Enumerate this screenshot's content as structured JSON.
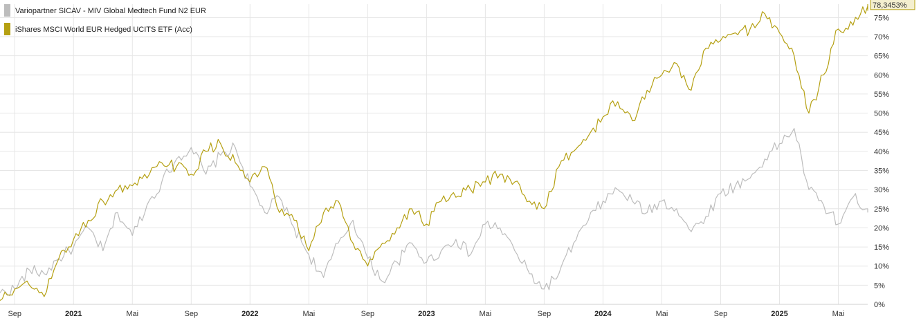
{
  "chart_data": {
    "type": "line",
    "title": "",
    "xlabel": "",
    "ylabel": "",
    "ylim": [
      0,
      78.5
    ],
    "y_ticks": [
      "0%",
      "5%",
      "10%",
      "15%",
      "20%",
      "25%",
      "30%",
      "35%",
      "40%",
      "45%",
      "50%",
      "55%",
      "60%",
      "65%",
      "70%",
      "75%"
    ],
    "x_ticks": [
      {
        "label": "Sep",
        "year": false
      },
      {
        "label": "2021",
        "year": true
      },
      {
        "label": "Mai",
        "year": false
      },
      {
        "label": "Sep",
        "year": false
      },
      {
        "label": "2022",
        "year": true
      },
      {
        "label": "Mai",
        "year": false
      },
      {
        "label": "Sep",
        "year": false
      },
      {
        "label": "2023",
        "year": true
      },
      {
        "label": "Mai",
        "year": false
      },
      {
        "label": "Sep",
        "year": false
      },
      {
        "label": "2024",
        "year": true
      },
      {
        "label": "Mai",
        "year": false
      },
      {
        "label": "Sep",
        "year": false
      },
      {
        "label": "2025",
        "year": true
      },
      {
        "label": "Mai",
        "year": false
      }
    ],
    "x_range": [
      "2020-08",
      "2025-07"
    ],
    "grid": true,
    "legend_position": "top-left",
    "last_value_label": "78,3453%",
    "series": [
      {
        "name": "Variopartner SICAV - MIV Global Medtech Fund N2 EUR",
        "color": "#bdbdbd",
        "x": [
          "2020-08",
          "2020-09",
          "2020-10",
          "2020-11",
          "2020-12",
          "2021-01",
          "2021-02",
          "2021-03",
          "2021-04",
          "2021-05",
          "2021-06",
          "2021-07",
          "2021-08",
          "2021-09",
          "2021-10",
          "2021-11",
          "2021-12",
          "2022-01",
          "2022-02",
          "2022-03",
          "2022-04",
          "2022-05",
          "2022-06",
          "2022-07",
          "2022-08",
          "2022-09",
          "2022-10",
          "2022-11",
          "2022-12",
          "2023-01",
          "2023-02",
          "2023-03",
          "2023-04",
          "2023-05",
          "2023-06",
          "2023-07",
          "2023-08",
          "2023-09",
          "2023-10",
          "2023-11",
          "2023-12",
          "2024-01",
          "2024-02",
          "2024-03",
          "2024-04",
          "2024-05",
          "2024-06",
          "2024-07",
          "2024-08",
          "2024-09",
          "2024-10",
          "2024-11",
          "2024-12",
          "2025-01",
          "2025-02",
          "2025-03",
          "2025-04",
          "2025-05",
          "2025-06",
          "2025-07"
        ],
        "values": [
          3,
          4,
          9,
          8,
          12,
          15,
          20,
          14,
          24,
          18,
          26,
          32,
          38,
          41,
          34,
          39,
          41,
          31,
          24,
          28,
          20,
          13,
          7,
          16,
          22,
          12,
          6,
          11,
          16,
          11,
          14,
          17,
          13,
          21,
          20,
          14,
          8,
          4,
          8,
          16,
          22,
          27,
          30,
          27,
          24,
          27,
          25,
          19,
          23,
          29,
          31,
          33,
          38,
          42,
          46,
          30,
          26,
          21,
          28,
          25
        ],
        "final": 24.9
      },
      {
        "name": "iShares MSCI World EUR Hedged UCITS ETF (Acc)",
        "color": "#b5a012",
        "x": [
          "2020-08",
          "2020-09",
          "2020-10",
          "2020-11",
          "2020-12",
          "2021-01",
          "2021-02",
          "2021-03",
          "2021-04",
          "2021-05",
          "2021-06",
          "2021-07",
          "2021-08",
          "2021-09",
          "2021-10",
          "2021-11",
          "2021-12",
          "2022-01",
          "2022-02",
          "2022-03",
          "2022-04",
          "2022-05",
          "2022-06",
          "2022-07",
          "2022-08",
          "2022-09",
          "2022-10",
          "2022-11",
          "2022-12",
          "2023-01",
          "2023-02",
          "2023-03",
          "2023-04",
          "2023-05",
          "2023-06",
          "2023-07",
          "2023-08",
          "2023-09",
          "2023-10",
          "2023-11",
          "2023-12",
          "2024-01",
          "2024-02",
          "2024-03",
          "2024-04",
          "2024-05",
          "2024-06",
          "2024-07",
          "2024-08",
          "2024-09",
          "2024-10",
          "2024-11",
          "2024-12",
          "2025-01",
          "2025-02",
          "2025-03",
          "2025-04",
          "2025-05",
          "2025-06",
          "2025-07"
        ],
        "values": [
          1,
          4,
          5,
          2,
          12,
          17,
          22,
          27,
          30,
          31,
          33,
          37,
          36,
          34,
          40,
          42,
          37,
          32,
          36,
          24,
          22,
          14,
          24,
          27,
          16,
          10,
          16,
          20,
          25,
          21,
          27,
          28,
          30,
          32,
          34,
          32,
          27,
          25,
          36,
          40,
          44,
          49,
          53,
          48,
          56,
          60,
          63,
          56,
          67,
          69,
          71,
          72,
          76,
          71,
          65,
          50,
          60,
          72,
          73,
          78
        ],
        "final": 78.3453
      }
    ]
  }
}
